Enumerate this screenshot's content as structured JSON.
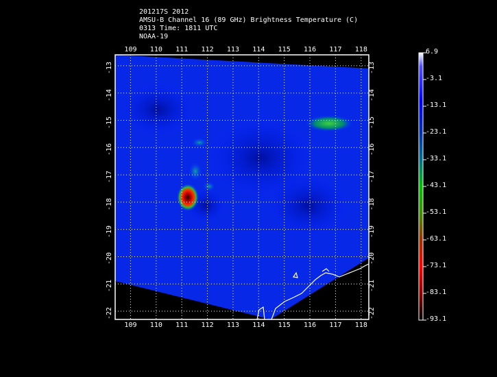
{
  "header": {
    "line1": "201217S 2012",
    "line2": "AMSU-B Channel 16 (89 GHz) Brightness Temperature (C)",
    "line3": "0313 Time: 1811 UTC",
    "line4": "NOAA-19"
  },
  "map": {
    "lon_ticks": [
      "109",
      "110",
      "111",
      "112",
      "113",
      "114",
      "115",
      "116",
      "117",
      "118"
    ],
    "lat_ticks": [
      "-13",
      "-14",
      "-15",
      "-16",
      "-17",
      "-18",
      "-19",
      "-20",
      "-21",
      "-22"
    ],
    "lon_range": [
      108.4,
      118.3
    ],
    "lat_range": [
      -12.6,
      -22.3
    ],
    "grid": true
  },
  "colorbar": {
    "labels": [
      "6.9",
      "-3.1",
      "-13.1",
      "-23.1",
      "-33.1",
      "-43.1",
      "-53.1",
      "-63.1",
      "-73.1",
      "-83.1",
      "-93.1"
    ],
    "range": [
      6.9,
      -93.1
    ],
    "colors": [
      "#ffffff",
      "#4040ff",
      "#0000ff",
      "#0030a0",
      "#008080",
      "#00c000",
      "#40a000",
      "#a04000",
      "#ff0000",
      "#800000",
      "#000000"
    ]
  }
}
